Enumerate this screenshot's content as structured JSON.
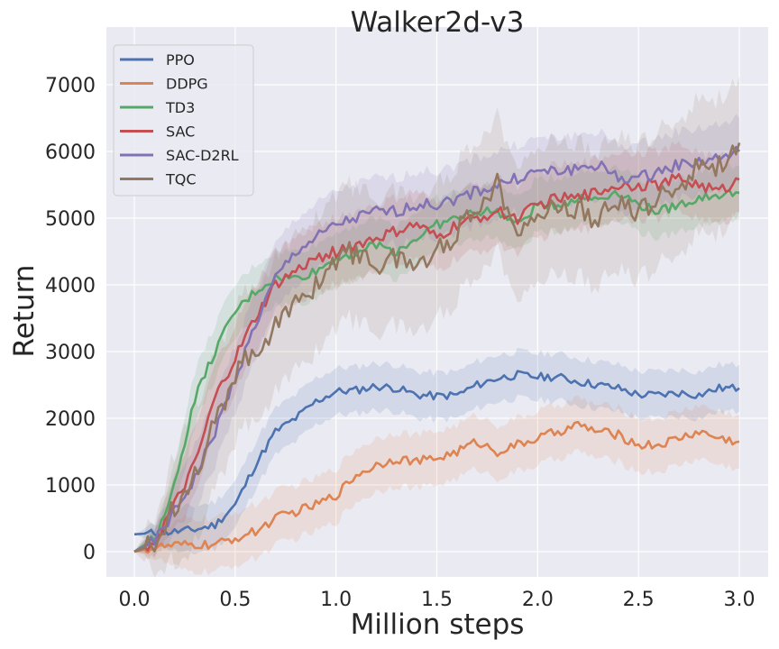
{
  "chart_data": {
    "type": "line",
    "title": "Walker2d-v3",
    "xlabel": "Million steps",
    "ylabel": "Return",
    "xlim": [
      -0.12,
      3.14
    ],
    "ylim": [
      -380,
      7760
    ],
    "xticks": [
      "0.0",
      "0.5",
      "1.0",
      "1.5",
      "2.0",
      "2.5",
      "3.0"
    ],
    "yticks": [
      "0",
      "1000",
      "2000",
      "3000",
      "4000",
      "5000",
      "6000",
      "7000"
    ],
    "grid": true,
    "legend_position": "top-left",
    "x": [
      0,
      0.1,
      0.2,
      0.3,
      0.4,
      0.5,
      0.6,
      0.7,
      0.8,
      0.9,
      1.0,
      1.1,
      1.2,
      1.3,
      1.4,
      1.5,
      1.6,
      1.7,
      1.8,
      1.9,
      2.0,
      2.1,
      2.2,
      2.3,
      2.4,
      2.5,
      2.6,
      2.7,
      2.8,
      2.9,
      3.0
    ],
    "series": [
      {
        "name": "PPO",
        "color": "#4c72b0",
        "std": 350,
        "values": [
          260,
          280,
          300,
          330,
          400,
          700,
          1300,
          1800,
          2000,
          2250,
          2400,
          2420,
          2480,
          2450,
          2350,
          2330,
          2350,
          2500,
          2600,
          2650,
          2620,
          2620,
          2550,
          2500,
          2450,
          2350,
          2350,
          2380,
          2350,
          2450,
          2450
        ]
      },
      {
        "name": "DDPG",
        "color": "#dd8452",
        "std": 400,
        "values": [
          0,
          60,
          90,
          100,
          100,
          200,
          300,
          500,
          600,
          700,
          850,
          1150,
          1300,
          1400,
          1350,
          1400,
          1500,
          1650,
          1500,
          1600,
          1700,
          1800,
          1900,
          1800,
          1750,
          1600,
          1600,
          1700,
          1800,
          1700,
          1650
        ]
      },
      {
        "name": "TD3",
        "color": "#55a868",
        "std": 400,
        "values": [
          0,
          200,
          1000,
          2300,
          3000,
          3600,
          3900,
          4100,
          4100,
          4200,
          4400,
          4500,
          4600,
          4500,
          4700,
          4900,
          5000,
          5100,
          5100,
          4900,
          5200,
          5200,
          5300,
          5300,
          5400,
          5200,
          5100,
          5200,
          5300,
          5350,
          5380
        ]
      },
      {
        "name": "SAC",
        "color": "#c44e52",
        "std": 500,
        "values": [
          0,
          150,
          700,
          1300,
          2300,
          2900,
          3500,
          4000,
          4200,
          4400,
          4500,
          4600,
          4700,
          4800,
          4900,
          4700,
          4900,
          5000,
          5100,
          5000,
          5200,
          5300,
          5300,
          5400,
          5500,
          5500,
          5500,
          5600,
          5500,
          5400,
          5580
        ]
      },
      {
        "name": "SAC-D2RL",
        "color": "#8172b3",
        "std": 500,
        "values": [
          0,
          150,
          600,
          1100,
          1800,
          2600,
          3400,
          4100,
          4500,
          4700,
          4900,
          5000,
          5100,
          5100,
          5200,
          5200,
          5300,
          5400,
          5500,
          5600,
          5700,
          5700,
          5750,
          5800,
          5600,
          5600,
          5700,
          5800,
          5850,
          5900,
          6000
        ]
      },
      {
        "name": "TQC",
        "color": "#937860",
        "std": 1000,
        "values": [
          0,
          100,
          700,
          1200,
          1900,
          2700,
          3000,
          3400,
          3700,
          4000,
          4400,
          4500,
          4300,
          4400,
          4300,
          4500,
          4800,
          5200,
          5500,
          4900,
          5000,
          5200,
          5100,
          5000,
          5200,
          5100,
          5300,
          5500,
          5800,
          5800,
          6130
        ]
      }
    ]
  }
}
